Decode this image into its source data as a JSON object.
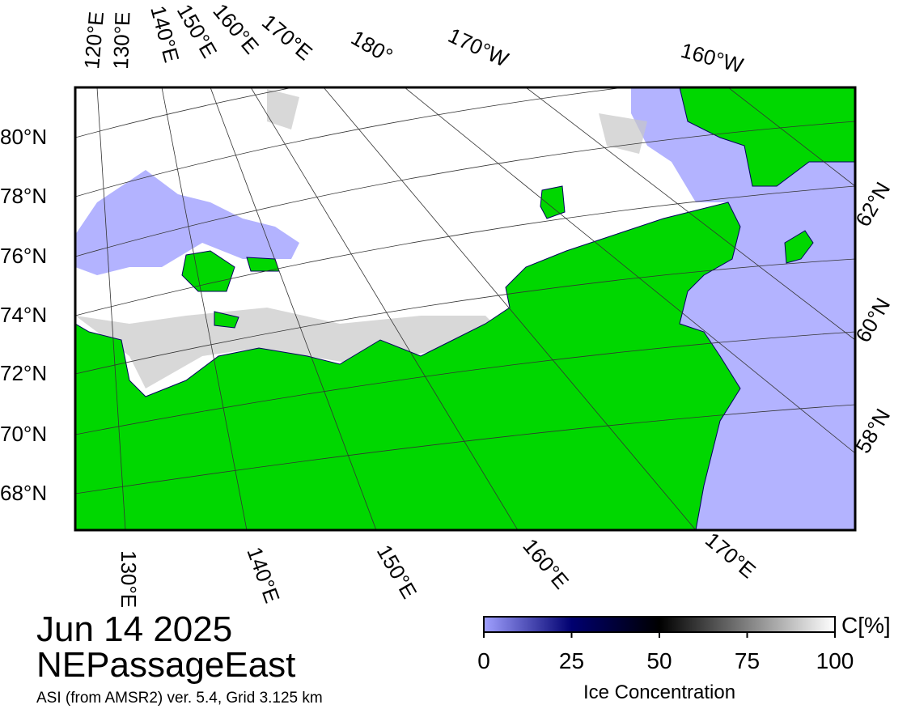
{
  "header": {
    "date": "Jun 14 2025",
    "region": "NEPassageEast",
    "source": "ASI (from AMSR2) ver. 5.4,  Grid 3.125 km"
  },
  "map": {
    "top_labels": [
      "120°E",
      "130°E",
      "140°E",
      "150°E",
      "160°E",
      "170°E",
      "180°",
      "170°W",
      "160°W"
    ],
    "left_labels": [
      "80°N",
      "78°N",
      "76°N",
      "74°N",
      "72°N",
      "70°N",
      "68°N"
    ],
    "right_labels": [
      "62°N",
      "60°N",
      "58°N"
    ],
    "bottom_labels": [
      "130°E",
      "140°E",
      "150°E",
      "160°E",
      "170°E"
    ]
  },
  "colorbar": {
    "lim": [
      0,
      100
    ],
    "ticks": [
      0,
      25,
      50,
      75,
      100
    ],
    "unit": "C[%]",
    "label": "Ice Concentration"
  }
}
